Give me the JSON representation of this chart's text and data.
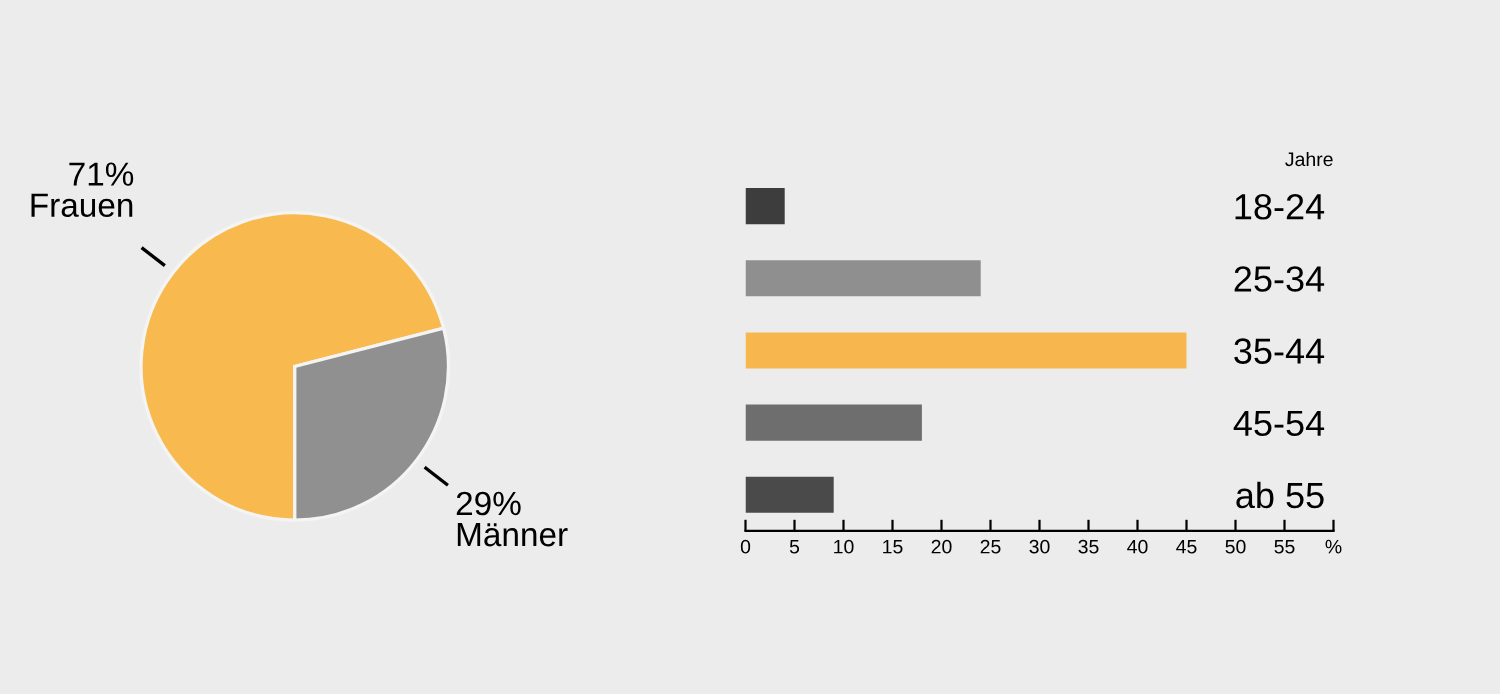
{
  "chart_data": [
    {
      "type": "pie",
      "categories": [
        "Frauen",
        "Männer"
      ],
      "values": [
        71,
        29
      ],
      "value_labels": [
        "71%",
        "29%"
      ],
      "colors": [
        "#f8b94f",
        "#909090"
      ]
    },
    {
      "type": "bar",
      "orientation": "horizontal",
      "ylabel": "Jahre",
      "categories": [
        "18-24",
        "25-34",
        "35-44",
        "45-54",
        "ab 55"
      ],
      "values": [
        4,
        24,
        45,
        18,
        9
      ],
      "colors": [
        "#3d3d3d",
        "#8f8f8f",
        "#f8b74e",
        "#6e6e6e",
        "#4a4a4a"
      ],
      "xlim": [
        0,
        60
      ],
      "xticks": [
        0,
        5,
        10,
        15,
        20,
        25,
        30,
        35,
        40,
        45,
        50,
        55,
        {
          "value": 60,
          "label": "%"
        }
      ],
      "grid": false,
      "legend": false
    }
  ]
}
